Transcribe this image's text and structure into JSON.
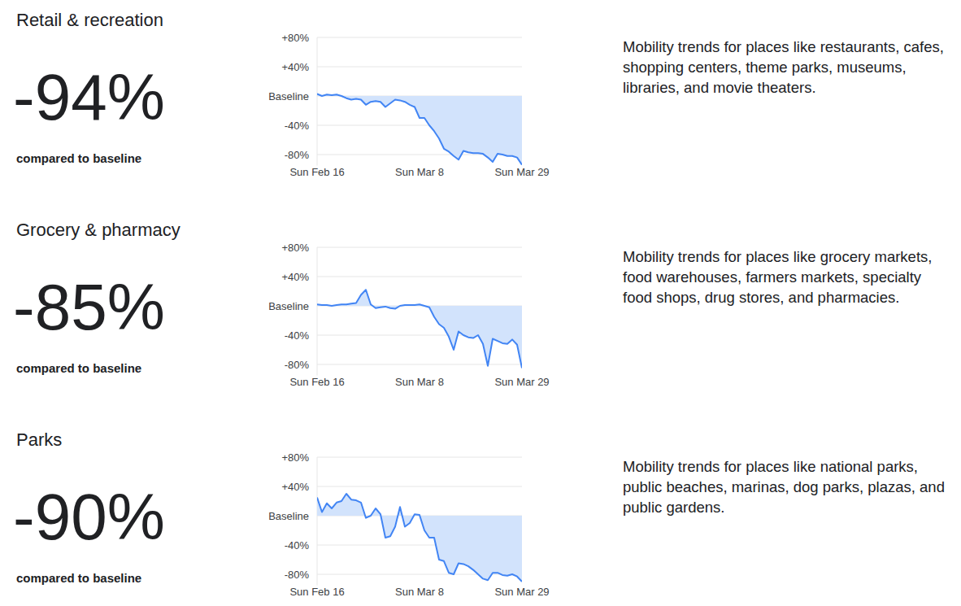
{
  "chart_data": [
    {
      "type": "line",
      "title": "Retail & recreation",
      "headline": "-94%",
      "subtitle": "compared to baseline",
      "description": "Mobility trends for places like restaurants, cafes, shopping centers, theme parks, museums, libraries, and movie theaters.",
      "categories": [
        "Sun Feb 16",
        null,
        null,
        null,
        null,
        null,
        null,
        null,
        null,
        null,
        null,
        null,
        null,
        null,
        null,
        null,
        null,
        null,
        null,
        null,
        null,
        "Sun Mar 8",
        null,
        null,
        null,
        null,
        null,
        null,
        null,
        null,
        null,
        null,
        null,
        null,
        null,
        null,
        null,
        null,
        null,
        null,
        null,
        null,
        "Sun Mar 29"
      ],
      "values": [
        3,
        0,
        2,
        1,
        2,
        0,
        -3,
        -5,
        -4,
        -5,
        -12,
        -8,
        -7,
        -8,
        -15,
        -10,
        -5,
        -6,
        -8,
        -12,
        -15,
        -30,
        -30,
        -40,
        -48,
        -58,
        -72,
        -76,
        -82,
        -87,
        -75,
        -77,
        -78,
        -78,
        -79,
        -84,
        -90,
        -79,
        -80,
        -82,
        -82,
        -84,
        -94
      ],
      "color": "#4285f4",
      "grid": true,
      "ylim": [
        -95,
        80
      ],
      "yticks": [
        {
          "value": 80,
          "label": "+80%"
        },
        {
          "value": 40,
          "label": "+40%"
        },
        {
          "value": 0,
          "label": "Baseline"
        },
        {
          "value": -40,
          "label": "-40%"
        },
        {
          "value": -80,
          "label": "-80%"
        }
      ]
    },
    {
      "type": "line",
      "title": "Grocery & pharmacy",
      "headline": "-85%",
      "subtitle": "compared to baseline",
      "description": "Mobility trends for places like grocery markets, food warehouses, farmers markets, specialty food shops, drug stores, and pharmacies.",
      "categories": [
        "Sun Feb 16",
        null,
        null,
        null,
        null,
        null,
        null,
        null,
        null,
        null,
        null,
        null,
        null,
        null,
        null,
        null,
        null,
        null,
        null,
        null,
        null,
        "Sun Mar 8",
        null,
        null,
        null,
        null,
        null,
        null,
        null,
        null,
        null,
        null,
        null,
        null,
        null,
        null,
        null,
        null,
        null,
        null,
        null,
        null,
        "Sun Mar 29"
      ],
      "values": [
        2,
        1,
        1,
        0,
        1,
        2,
        2,
        3,
        4,
        15,
        22,
        2,
        -3,
        -2,
        -1,
        -3,
        -4,
        0,
        1,
        1,
        1,
        2,
        0,
        -2,
        -15,
        -25,
        -30,
        -42,
        -60,
        -35,
        -40,
        -43,
        -44,
        -40,
        -52,
        -82,
        -45,
        -48,
        -51,
        -52,
        -46,
        -53,
        -85
      ],
      "color": "#4285f4",
      "grid": true,
      "ylim": [
        -95,
        80
      ],
      "yticks": [
        {
          "value": 80,
          "label": "+80%"
        },
        {
          "value": 40,
          "label": "+40%"
        },
        {
          "value": 0,
          "label": "Baseline"
        },
        {
          "value": -40,
          "label": "-40%"
        },
        {
          "value": -80,
          "label": "-80%"
        }
      ]
    },
    {
      "type": "line",
      "title": "Parks",
      "headline": "-90%",
      "subtitle": "compared to baseline",
      "description": "Mobility trends for places like national parks, public beaches, marinas, dog parks, plazas, and public gardens.",
      "categories": [
        "Sun Feb 16",
        null,
        null,
        null,
        null,
        null,
        null,
        null,
        null,
        null,
        null,
        null,
        null,
        null,
        null,
        null,
        null,
        null,
        null,
        null,
        null,
        "Sun Mar 8",
        null,
        null,
        null,
        null,
        null,
        null,
        null,
        null,
        null,
        null,
        null,
        null,
        null,
        null,
        null,
        null,
        null,
        null,
        null,
        null,
        "Sun Mar 29"
      ],
      "values": [
        25,
        5,
        17,
        10,
        18,
        20,
        30,
        22,
        21,
        18,
        -3,
        0,
        10,
        2,
        -30,
        -28,
        -15,
        12,
        -15,
        -10,
        2,
        1,
        -20,
        -30,
        -30,
        -60,
        -62,
        -78,
        -80,
        -65,
        -66,
        -69,
        -74,
        -80,
        -86,
        -88,
        -78,
        -78,
        -81,
        -82,
        -80,
        -83,
        -90
      ],
      "color": "#4285f4",
      "grid": true,
      "ylim": [
        -95,
        80
      ],
      "yticks": [
        {
          "value": 80,
          "label": "+80%"
        },
        {
          "value": 40,
          "label": "+40%"
        },
        {
          "value": 0,
          "label": "Baseline"
        },
        {
          "value": -40,
          "label": "-40%"
        },
        {
          "value": -80,
          "label": "-80%"
        }
      ]
    }
  ]
}
